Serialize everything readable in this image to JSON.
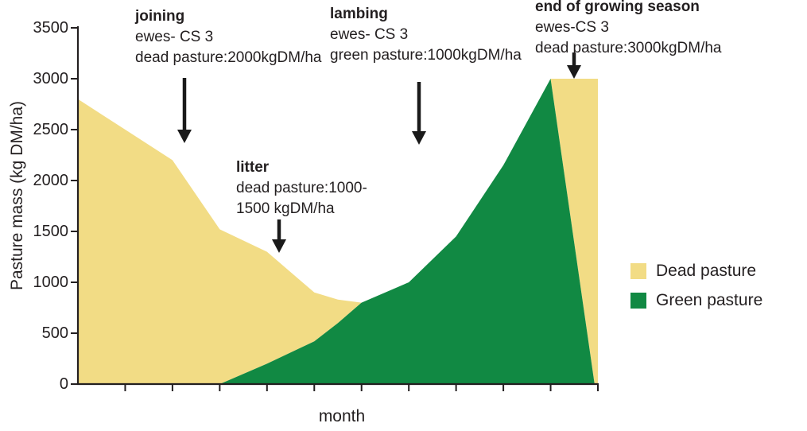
{
  "figure": {
    "xlabel": "month",
    "ylabel": "Pasture mass (kg DM/ha)"
  },
  "annotations": {
    "joining": {
      "title": "joining",
      "line1": "ewes- CS 3",
      "line2": "dead pasture:2000kgDM/ha"
    },
    "litter": {
      "title": "litter",
      "line1": "dead pasture:1000-",
      "line2": "1500 kgDM/ha"
    },
    "lambing": {
      "title": "lambing",
      "line1": "ewes- CS 3",
      "line2": "green pasture:1000kgDM/ha"
    },
    "end_of_growing_season": {
      "title": "end of growing season",
      "line1": "ewes-CS 3",
      "line2": "dead pasture:3000kgDM/ha"
    }
  },
  "legend": {
    "items": [
      {
        "label": "Dead pasture",
        "color": "#f2dc85"
      },
      {
        "label": "Green pasture",
        "color": "#118943"
      }
    ]
  },
  "chart_data": {
    "type": "area",
    "stacked": true,
    "title": "",
    "xlabel": "month",
    "ylabel": "Pasture mass (kg DM/ha)",
    "ylim": [
      0,
      3500
    ],
    "y_ticks": [
      0,
      500,
      1000,
      1500,
      2000,
      2500,
      3000,
      3500
    ],
    "x_axis": {
      "tick_count": 11,
      "tick_labels_visible": false,
      "unit": "month"
    },
    "x": [
      0,
      1,
      2,
      3,
      4,
      5,
      5.5,
      6,
      7,
      8,
      9,
      10,
      10.93,
      11
    ],
    "x_max": 11,
    "series": [
      {
        "name": "Green pasture",
        "color": "#118943",
        "values": [
          0,
          0,
          0,
          0,
          200,
          420,
          600,
          800,
          1000,
          1450,
          2150,
          3000,
          0,
          0
        ]
      },
      {
        "name": "Dead pasture",
        "color": "#f2dc85",
        "values": [
          2800,
          2500,
          2200,
          1520,
          1100,
          480,
          230,
          0,
          0,
          0,
          0,
          0,
          3000,
          3000
        ]
      }
    ],
    "axis_color": "#231f20",
    "legend_position": "right"
  }
}
